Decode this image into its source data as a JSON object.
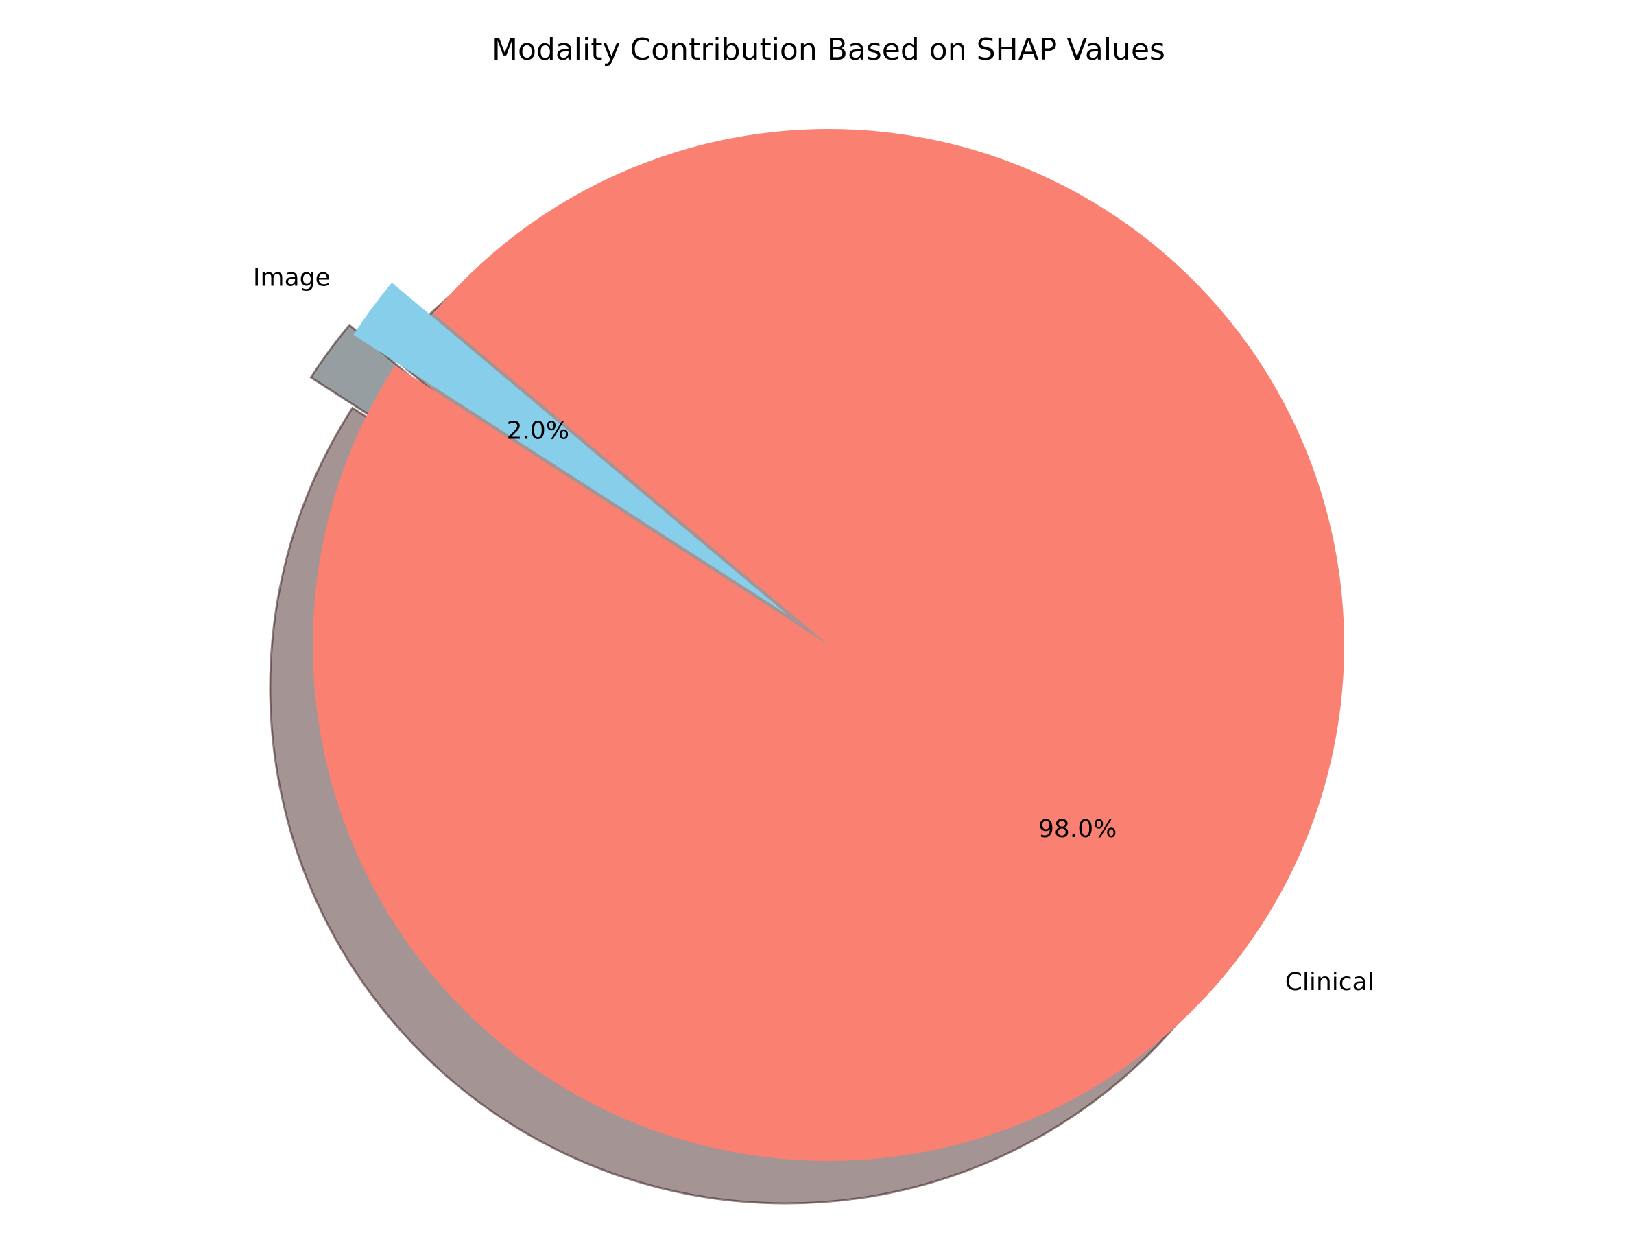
{
  "chart_data": {
    "type": "pie",
    "title": "Modality Contribution Based on SHAP Values",
    "categories": [
      "Image",
      "Clinical"
    ],
    "values": [
      2.0,
      98.0
    ],
    "percent_labels": [
      "2.0%",
      "98.0%"
    ],
    "colors": [
      "#87CEEB",
      "#FA8072"
    ],
    "exploded": [
      "Image"
    ],
    "shadow": true,
    "legend": "none",
    "grid": false
  }
}
